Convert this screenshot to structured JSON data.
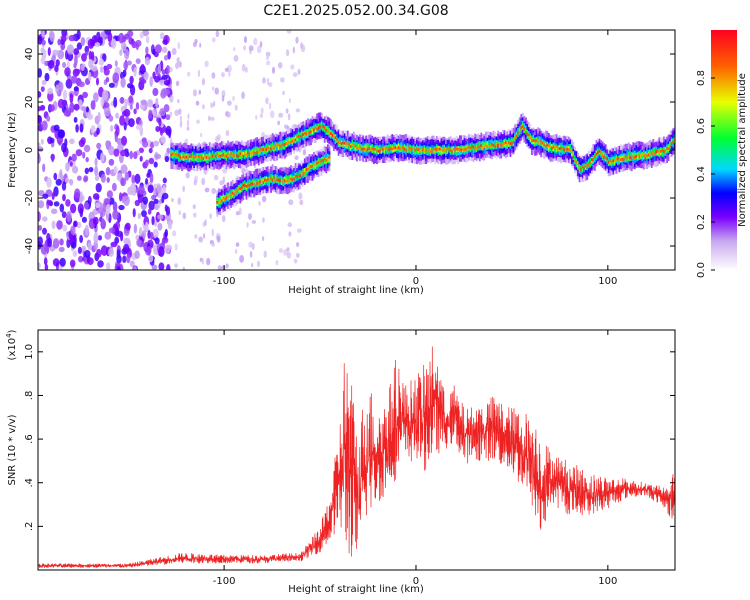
{
  "title": "C2E1.2025.052.00.34.G08",
  "chart_data": [
    {
      "type": "heatmap",
      "xlabel": "Height of straight line (km)",
      "ylabel": "Frequency (Hz)",
      "xlim": [
        -197,
        135
      ],
      "ylim": [
        -50,
        50
      ],
      "x_ticks": [
        -100,
        0,
        100
      ],
      "y_ticks": [
        -40,
        -20,
        0,
        20,
        40
      ],
      "colorbar": {
        "label": "Normalized spectral amplitude",
        "range": [
          0,
          1
        ],
        "ticks": [
          "0.0",
          "0.2",
          "0.4",
          "0.6",
          "0.8"
        ]
      },
      "noise_region_x": [
        -197,
        -128
      ],
      "ridge": {
        "x": [
          -128,
          -120,
          -110,
          -100,
          -90,
          -80,
          -70,
          -60,
          -55,
          -50,
          -45,
          -40,
          -35,
          -30,
          -20,
          -10,
          0,
          10,
          20,
          30,
          40,
          50,
          55,
          60,
          65,
          70,
          80,
          85,
          90,
          95,
          100,
          110,
          120,
          130,
          135
        ],
        "frequency": [
          -2,
          -3,
          -3,
          -2,
          -2,
          0,
          2,
          6,
          8,
          10,
          7,
          3,
          2,
          1,
          0,
          1,
          0,
          0,
          0,
          1,
          2,
          3,
          10,
          4,
          3,
          1,
          0,
          -8,
          -6,
          0,
          -5,
          -3,
          -2,
          0,
          5
        ]
      },
      "ridge_lower_branch": {
        "x": [
          -104,
          -95,
          -90,
          -85,
          -80,
          -75,
          -70,
          -65,
          -60,
          -55,
          -50,
          -45
        ],
        "frequency": [
          -22,
          -18,
          -15,
          -14,
          -13,
          -12,
          -13,
          -12,
          -10,
          -7,
          -5,
          -3
        ]
      }
    },
    {
      "type": "line",
      "series": [
        {
          "color": "#ee2222"
        }
      ],
      "xlabel": "Height of straight line (km)",
      "ylabel": "SNR (10 * v/v)",
      "multiplier_label": "(x10",
      "multiplier_exp": "4",
      "xlim": [
        -197,
        135
      ],
      "ylim": [
        0,
        1.1
      ],
      "x_ticks": [
        -100,
        0,
        100
      ],
      "y_ticks": [
        0.2,
        0.4,
        0.6,
        0.8,
        1.0
      ],
      "envelope": {
        "x": [
          -197,
          -150,
          -122,
          -100,
          -80,
          -60,
          -50,
          -45,
          -40,
          -37,
          -33,
          -30,
          -26,
          -20,
          -15,
          -10,
          -5,
          0,
          5,
          10,
          15,
          20,
          25,
          30,
          40,
          50,
          60,
          65,
          70,
          80,
          90,
          100,
          110,
          120,
          130,
          135
        ],
        "low": [
          0.01,
          0.01,
          0.03,
          0.03,
          0.03,
          0.04,
          0.08,
          0.12,
          0.2,
          0.05,
          0.04,
          0.02,
          0.22,
          0.3,
          0.35,
          0.42,
          0.48,
          0.5,
          0.45,
          0.52,
          0.55,
          0.58,
          0.48,
          0.5,
          0.5,
          0.44,
          0.3,
          0.12,
          0.3,
          0.25,
          0.25,
          0.28,
          0.33,
          0.34,
          0.28,
          0.18
        ],
        "high": [
          0.03,
          0.03,
          0.08,
          0.07,
          0.07,
          0.08,
          0.2,
          0.35,
          0.65,
          1.05,
          0.85,
          0.6,
          0.9,
          0.75,
          0.8,
          1.0,
          0.85,
          0.9,
          0.95,
          1.07,
          0.8,
          0.85,
          0.75,
          0.75,
          0.8,
          0.75,
          0.72,
          0.65,
          0.55,
          0.5,
          0.45,
          0.43,
          0.42,
          0.4,
          0.38,
          0.46
        ]
      }
    }
  ]
}
